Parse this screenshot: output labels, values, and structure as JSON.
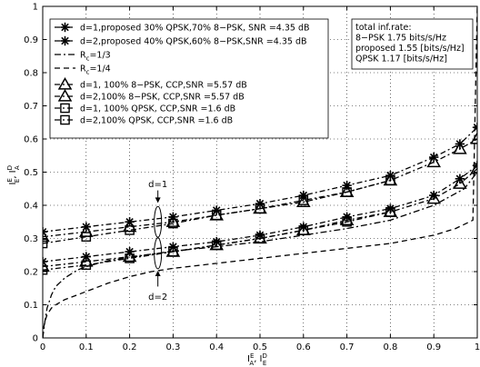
{
  "chart_data": {
    "type": "line",
    "title": "",
    "xlabel": "I_A^E, I_E^D",
    "ylabel": "I_E^E, I_A^D",
    "xlim": [
      0,
      1
    ],
    "ylim": [
      0,
      1
    ],
    "xticks": [
      "0",
      "0.1",
      "0.2",
      "0.3",
      "0.4",
      "0.5",
      "0.6",
      "0.7",
      "0.8",
      "0.9",
      "1"
    ],
    "yticks": [
      "0",
      "0.1",
      "0.2",
      "0.3",
      "0.4",
      "0.5",
      "0.6",
      "0.7",
      "0.8",
      "0.9",
      "1"
    ],
    "grid": true,
    "legend_position": "top-left",
    "series": [
      {
        "name": "d=1,proposed 30% QPSK,70% 8−PSK, SNR =4.35 dB",
        "marker": "star",
        "dash": "6,3,2,3",
        "x": [
          0,
          0.1,
          0.2,
          0.3,
          0.4,
          0.5,
          0.6,
          0.7,
          0.8,
          0.9,
          0.96,
          1.0
        ],
        "y": [
          0.32,
          0.335,
          0.35,
          0.365,
          0.385,
          0.405,
          0.43,
          0.46,
          0.49,
          0.545,
          0.585,
          0.635
        ]
      },
      {
        "name": "d=2,proposed 40% QPSK,60% 8−PSK,SNR =4.35 dB",
        "marker": "star",
        "dash": "6,3,2,3",
        "x": [
          0,
          0.1,
          0.2,
          0.3,
          0.4,
          0.5,
          0.6,
          0.7,
          0.8,
          0.9,
          0.96,
          1.0
        ],
        "y": [
          0.23,
          0.245,
          0.26,
          0.275,
          0.29,
          0.31,
          0.335,
          0.365,
          0.39,
          0.43,
          0.48,
          0.52
        ]
      },
      {
        "name": "R_c=1/3",
        "marker": "none",
        "dash": "7,3,2,3",
        "x": [
          0,
          0.005,
          0.01,
          0.02,
          0.03,
          0.05,
          0.08,
          0.1,
          0.15,
          0.2,
          0.3,
          0.4,
          0.5,
          0.6,
          0.7,
          0.8,
          0.9,
          0.97,
          1.0
        ],
        "y": [
          0.0,
          0.05,
          0.09,
          0.13,
          0.155,
          0.18,
          0.205,
          0.215,
          0.233,
          0.243,
          0.262,
          0.275,
          0.29,
          0.31,
          0.33,
          0.355,
          0.4,
          0.45,
          0.5
        ]
      },
      {
        "name": "R_c=1/4",
        "marker": "none",
        "dash": "6,4",
        "x": [
          0,
          0.002,
          0.005,
          0.01,
          0.02,
          0.03,
          0.05,
          0.08,
          0.1,
          0.15,
          0.2,
          0.25,
          0.3,
          0.4,
          0.5,
          0.6,
          0.7,
          0.8,
          0.9,
          0.95,
          0.99,
          1.0
        ],
        "y": [
          0.0,
          0.03,
          0.05,
          0.07,
          0.09,
          0.1,
          0.115,
          0.13,
          0.14,
          0.165,
          0.185,
          0.2,
          0.21,
          0.225,
          0.24,
          0.255,
          0.27,
          0.285,
          0.31,
          0.33,
          0.355,
          1.0
        ]
      },
      {
        "name": "d=1, 100% 8−PSK, CCP,SNR =5.57 dB",
        "marker": "triangle",
        "dash": "6,3,2,3",
        "x": [
          0,
          0.1,
          0.2,
          0.3,
          0.4,
          0.5,
          0.6,
          0.7,
          0.8,
          0.9,
          0.96,
          1.0
        ],
        "y": [
          0.305,
          0.32,
          0.335,
          0.35,
          0.37,
          0.39,
          0.41,
          0.44,
          0.475,
          0.53,
          0.57,
          0.6
        ]
      },
      {
        "name": "d=2,100% 8−PSK, CCP,SNR =5.57 dB",
        "marker": "triangle",
        "dash": "6,3,2,3",
        "x": [
          0,
          0.1,
          0.2,
          0.3,
          0.4,
          0.5,
          0.6,
          0.7,
          0.8,
          0.9,
          0.96,
          1.0
        ],
        "y": [
          0.215,
          0.23,
          0.245,
          0.26,
          0.28,
          0.3,
          0.325,
          0.355,
          0.38,
          0.42,
          0.465,
          0.51
        ]
      },
      {
        "name": "d=1, 100% QPSK, CCP,SNR =1.6 dB",
        "marker": "square",
        "dash": "6,3,2,3",
        "x": [
          0,
          0.1,
          0.2,
          0.3,
          0.4,
          0.5,
          0.6,
          0.7,
          0.8
        ],
        "y": [
          0.285,
          0.305,
          0.325,
          0.345,
          0.37,
          0.39,
          0.415,
          0.44,
          0.475
        ]
      },
      {
        "name": "d=2,100% QPSK, CCP,SNR =1.6 dB",
        "marker": "square",
        "dash": "6,3,2,3",
        "x": [
          0,
          0.1,
          0.2,
          0.3,
          0.4,
          0.5,
          0.6,
          0.7,
          0.8
        ],
        "y": [
          0.205,
          0.22,
          0.24,
          0.26,
          0.28,
          0.3,
          0.325,
          0.35,
          0.38
        ]
      }
    ],
    "info_box": [
      "total inf.rate:",
      "8−PSK 1.75 bits/s/Hz",
      "proposed 1.55 [bits/s/Hz]",
      "QPSK 1.17 [bits/s/Hz]"
    ],
    "annotations": [
      {
        "text": "d=1"
      },
      {
        "text": "d=2"
      }
    ]
  }
}
